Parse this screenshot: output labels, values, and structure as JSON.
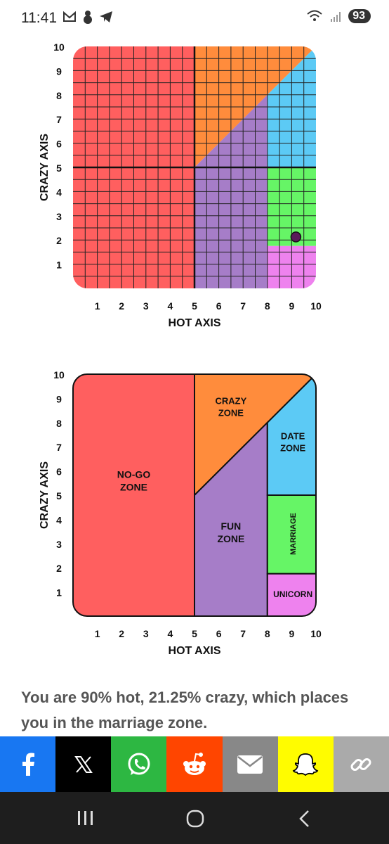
{
  "status": {
    "time": "11:41",
    "battery": "93"
  },
  "chart_data": [
    {
      "type": "scatter",
      "xlabel": "HOT AXIS",
      "ylabel": "CRAZY AXIS",
      "xlim": [
        0,
        10
      ],
      "ylim": [
        0,
        10
      ],
      "x_ticks": [
        1,
        2,
        3,
        4,
        5,
        6,
        7,
        8,
        9,
        10
      ],
      "y_ticks": [
        1,
        2,
        3,
        4,
        5,
        6,
        7,
        8,
        9,
        10
      ],
      "grid": true,
      "point": {
        "x": 9,
        "y": 2.125,
        "color": "#5a1a5a"
      },
      "zone_colors": {
        "no_go": "#ff5f5f",
        "crazy": "#ff8c3c",
        "fun": "#a67dc8",
        "date": "#5ccaf5",
        "marriage": "#66f566",
        "unicorn": "#ee82ee"
      }
    },
    {
      "type": "diagram",
      "xlabel": "HOT AXIS",
      "ylabel": "CRAZY AXIS",
      "xlim": [
        0,
        10
      ],
      "ylim": [
        0,
        10
      ],
      "x_ticks": [
        1,
        2,
        3,
        4,
        5,
        6,
        7,
        8,
        9,
        10
      ],
      "y_ticks": [
        1,
        2,
        3,
        4,
        5,
        6,
        7,
        8,
        9,
        10
      ],
      "grid": false,
      "zones": [
        {
          "id": "no_go",
          "lines": [
            "NO-GO",
            "ZONE"
          ],
          "color": "#ff5f5f"
        },
        {
          "id": "crazy",
          "lines": [
            "CRAZY",
            "ZONE"
          ],
          "color": "#ff8c3c"
        },
        {
          "id": "fun",
          "lines": [
            "FUN",
            "ZONE"
          ],
          "color": "#a67dc8"
        },
        {
          "id": "date",
          "lines": [
            "DATE",
            "ZONE"
          ],
          "color": "#5ccaf5"
        },
        {
          "id": "marriage",
          "lines": [
            "MARRIAGE"
          ],
          "color": "#66f566"
        },
        {
          "id": "unicorn",
          "lines": [
            "UNICORN"
          ],
          "color": "#ee82ee"
        }
      ]
    }
  ],
  "result_text": "You are 90% hot, 21.25% crazy, which places you in the marriage zone.",
  "share_bar": [
    {
      "name": "facebook",
      "icon": "facebook-icon",
      "color": "#1877f2"
    },
    {
      "name": "x",
      "icon": "x-icon",
      "color": "#000000"
    },
    {
      "name": "whatsapp",
      "icon": "whatsapp-icon",
      "color": "#2db742"
    },
    {
      "name": "reddit",
      "icon": "reddit-icon",
      "color": "#ff4500"
    },
    {
      "name": "email",
      "icon": "email-icon",
      "color": "#888888"
    },
    {
      "name": "snapchat",
      "icon": "snapchat-icon",
      "color": "#fffc00"
    },
    {
      "name": "copy-link",
      "icon": "link-icon",
      "color": "#aaaaaa"
    }
  ]
}
